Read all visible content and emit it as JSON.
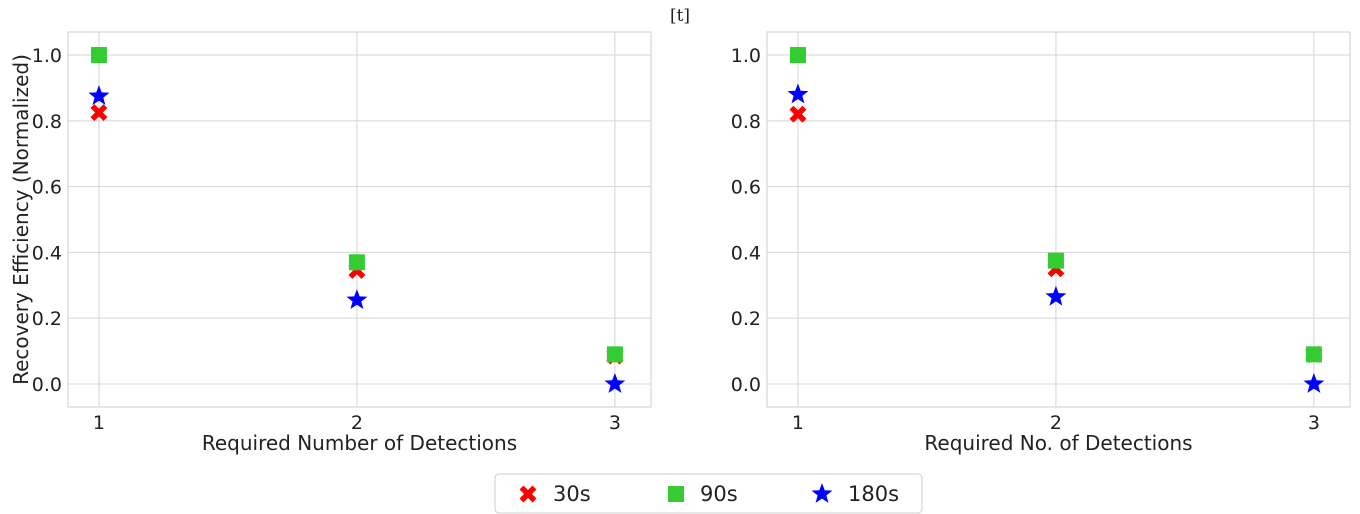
{
  "figure_tag": "[t]",
  "chart_data": [
    {
      "type": "scatter",
      "xlabel": "Required Number of Detections",
      "ylabel": "Recovery Efficiency (Normalized)",
      "x": [
        1,
        2,
        3
      ],
      "xticks": [
        "1",
        "2",
        "3"
      ],
      "yticks": [
        "0.0",
        "0.2",
        "0.4",
        "0.6",
        "0.8",
        "1.0"
      ],
      "xlim": [
        0.88,
        3.14
      ],
      "ylim": [
        -0.07,
        1.07
      ],
      "grid": true,
      "series": [
        {
          "name": "30s",
          "marker": "x",
          "color": "#ff0000",
          "values": [
            0.825,
            0.345,
            0.085
          ]
        },
        {
          "name": "90s",
          "marker": "square",
          "color": "#33cc33",
          "values": [
            1.0,
            0.37,
            0.09
          ]
        },
        {
          "name": "180s",
          "marker": "star",
          "color": "#0000ff",
          "values": [
            0.875,
            0.255,
            0.0
          ]
        }
      ]
    },
    {
      "type": "scatter",
      "xlabel": "Required No. of Detections",
      "ylabel": "",
      "x": [
        1,
        2,
        3
      ],
      "xticks": [
        "1",
        "2",
        "3"
      ],
      "yticks": [
        "0.0",
        "0.2",
        "0.4",
        "0.6",
        "0.8",
        "1.0"
      ],
      "xlim": [
        0.88,
        3.14
      ],
      "ylim": [
        -0.07,
        1.07
      ],
      "grid": true,
      "series": [
        {
          "name": "30s",
          "marker": "x",
          "color": "#ff0000",
          "values": [
            0.82,
            0.35,
            0.09
          ]
        },
        {
          "name": "90s",
          "marker": "square",
          "color": "#33cc33",
          "values": [
            1.0,
            0.375,
            0.09
          ]
        },
        {
          "name": "180s",
          "marker": "star",
          "color": "#0000ff",
          "values": [
            0.88,
            0.265,
            0.0
          ]
        }
      ]
    }
  ],
  "legend": {
    "placement": "bottom-center",
    "entries": [
      {
        "label": "30s",
        "marker": "x",
        "color": "#ff0000"
      },
      {
        "label": "90s",
        "marker": "square",
        "color": "#33cc33"
      },
      {
        "label": "180s",
        "marker": "star",
        "color": "#0000ff"
      }
    ]
  }
}
